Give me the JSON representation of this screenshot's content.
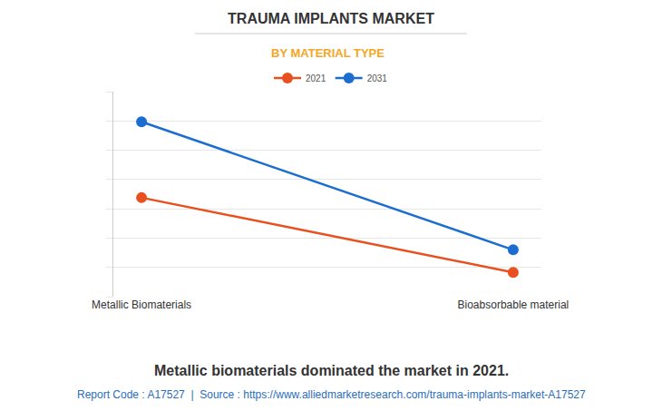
{
  "chart_data": {
    "type": "line",
    "title": "TRAUMA IMPLANTS MARKET",
    "subtitle": "BY MATERIAL TYPE",
    "categories": [
      "Metallic Biomaterials",
      "Bioabsorbable material"
    ],
    "series": [
      {
        "name": "2021",
        "color": "#e8511f",
        "values": [
          3.38,
          0.83
        ]
      },
      {
        "name": "2031",
        "color": "#1c6dd0",
        "values": [
          5.97,
          1.6
        ]
      }
    ],
    "ylim": [
      0,
      7
    ],
    "yticks": [
      0,
      1,
      2,
      3,
      4,
      5,
      6,
      7
    ],
    "grid": true,
    "legend": "top",
    "tick_labels": "x",
    "marker": "circle",
    "annotations": [
      "Metallic biomaterials dominated the market in 2021.",
      "Report Code : A17527  |  Source : https://www.alliedmarketresearch.com/trauma-implants-market-A17527"
    ]
  }
}
